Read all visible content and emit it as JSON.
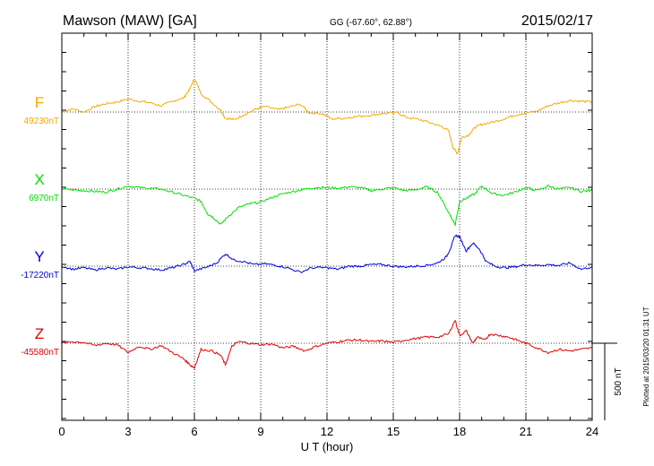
{
  "chart_data": {
    "type": "line",
    "station": "Mawson (MAW)  [GA]",
    "coords": "GG (-67.60°,  62.88°)",
    "date": "2015/02/17",
    "xlabel": "U T (hour)",
    "xlim": [
      0,
      24
    ],
    "xticks": [
      "0",
      "3",
      "6",
      "9",
      "12",
      "15",
      "18",
      "21",
      "24"
    ],
    "grid": true,
    "scale_label": "500 nT",
    "plotted_label": "Plotted at 2015/03/20 01:31  UT",
    "series": [
      {
        "name": "F",
        "baseline_label": "49230nT",
        "color": "#f5a800",
        "points": [
          [
            0,
            0
          ],
          [
            0.5,
            20
          ],
          [
            1,
            0
          ],
          [
            1.5,
            35
          ],
          [
            2,
            55
          ],
          [
            2.5,
            65
          ],
          [
            3,
            85
          ],
          [
            3.5,
            70
          ],
          [
            4,
            60
          ],
          [
            4.5,
            40
          ],
          [
            5,
            70
          ],
          [
            5.5,
            90
          ],
          [
            5.8,
            150
          ],
          [
            6,
            220
          ],
          [
            6.3,
            120
          ],
          [
            6.8,
            60
          ],
          [
            7.2,
            10
          ],
          [
            7.4,
            -40
          ],
          [
            7.8,
            -50
          ],
          [
            8.2,
            -20
          ],
          [
            8.8,
            20
          ],
          [
            9.2,
            35
          ],
          [
            9.8,
            15
          ],
          [
            10.2,
            30
          ],
          [
            10.8,
            50
          ],
          [
            11.2,
            -5
          ],
          [
            11.8,
            -10
          ],
          [
            12.2,
            -45
          ],
          [
            12.8,
            -40
          ],
          [
            13.3,
            -30
          ],
          [
            14,
            -20
          ],
          [
            14.5,
            -10
          ],
          [
            15.2,
            -5
          ],
          [
            15.6,
            -35
          ],
          [
            16.2,
            -50
          ],
          [
            16.8,
            -75
          ],
          [
            17.2,
            -95
          ],
          [
            17.5,
            -120
          ],
          [
            17.7,
            -230
          ],
          [
            17.9,
            -270
          ],
          [
            18.1,
            -165
          ],
          [
            18.4,
            -150
          ],
          [
            18.7,
            -100
          ],
          [
            19,
            -80
          ],
          [
            19.5,
            -65
          ],
          [
            20,
            -45
          ],
          [
            20.5,
            -20
          ],
          [
            21,
            -5
          ],
          [
            21.5,
            5
          ],
          [
            22,
            40
          ],
          [
            22.5,
            60
          ],
          [
            23,
            75
          ],
          [
            23.5,
            70
          ],
          [
            24,
            65
          ]
        ]
      },
      {
        "name": "X",
        "baseline_label": "6970nT",
        "color": "#00e000",
        "points": [
          [
            0,
            0
          ],
          [
            0.5,
            -5
          ],
          [
            1,
            -10
          ],
          [
            1.5,
            -15
          ],
          [
            2,
            -20
          ],
          [
            2.5,
            0
          ],
          [
            3,
            20
          ],
          [
            3.5,
            10
          ],
          [
            4,
            5
          ],
          [
            4.5,
            0
          ],
          [
            5,
            -20
          ],
          [
            5.5,
            -40
          ],
          [
            6,
            -60
          ],
          [
            6.3,
            -80
          ],
          [
            6.6,
            -160
          ],
          [
            6.9,
            -190
          ],
          [
            7.2,
            -230
          ],
          [
            7.5,
            -180
          ],
          [
            8,
            -120
          ],
          [
            8.5,
            -95
          ],
          [
            9,
            -85
          ],
          [
            9.5,
            -55
          ],
          [
            10,
            -30
          ],
          [
            10.5,
            -15
          ],
          [
            11,
            0
          ],
          [
            11.5,
            10
          ],
          [
            12,
            10
          ],
          [
            12.5,
            5
          ],
          [
            13,
            15
          ],
          [
            13.5,
            10
          ],
          [
            14,
            -10
          ],
          [
            14.5,
            0
          ],
          [
            15,
            10
          ],
          [
            15.5,
            -10
          ],
          [
            16,
            -5
          ],
          [
            16.5,
            15
          ],
          [
            17,
            -20
          ],
          [
            17.5,
            -150
          ],
          [
            17.8,
            -230
          ],
          [
            18,
            -80
          ],
          [
            18.3,
            -60
          ],
          [
            18.7,
            -30
          ],
          [
            19,
            20
          ],
          [
            19.5,
            -30
          ],
          [
            20,
            -40
          ],
          [
            20.5,
            -20
          ],
          [
            21,
            10
          ],
          [
            21.5,
            -10
          ],
          [
            22,
            20
          ],
          [
            22.5,
            0
          ],
          [
            23,
            10
          ],
          [
            23.5,
            -15
          ],
          [
            24,
            -10
          ]
        ]
      },
      {
        "name": "Y",
        "baseline_label": "-17220nT",
        "color": "#0000e0",
        "points": [
          [
            0,
            0
          ],
          [
            0.5,
            -20
          ],
          [
            1,
            -10
          ],
          [
            1.5,
            -25
          ],
          [
            2,
            -10
          ],
          [
            2.5,
            -20
          ],
          [
            3,
            -5
          ],
          [
            3.5,
            -10
          ],
          [
            4,
            -15
          ],
          [
            4.5,
            -25
          ],
          [
            5,
            -10
          ],
          [
            5.5,
            10
          ],
          [
            5.8,
            30
          ],
          [
            6,
            -30
          ],
          [
            6.5,
            -10
          ],
          [
            7,
            20
          ],
          [
            7.4,
            80
          ],
          [
            7.8,
            40
          ],
          [
            8.2,
            30
          ],
          [
            8.7,
            10
          ],
          [
            9.2,
            15
          ],
          [
            9.7,
            5
          ],
          [
            10.2,
            -10
          ],
          [
            10.8,
            -40
          ],
          [
            11.3,
            -10
          ],
          [
            12,
            -10
          ],
          [
            12.5,
            -20
          ],
          [
            13,
            0
          ],
          [
            13.5,
            0
          ],
          [
            14,
            10
          ],
          [
            14.5,
            10
          ],
          [
            15,
            0
          ],
          [
            15.5,
            -5
          ],
          [
            16,
            0
          ],
          [
            16.5,
            5
          ],
          [
            17,
            20
          ],
          [
            17.4,
            60
          ],
          [
            17.6,
            120
          ],
          [
            17.8,
            200
          ],
          [
            18,
            190
          ],
          [
            18.3,
            100
          ],
          [
            18.6,
            150
          ],
          [
            18.9,
            110
          ],
          [
            19.2,
            30
          ],
          [
            19.6,
            0
          ],
          [
            20,
            -10
          ],
          [
            20.5,
            -5
          ],
          [
            21,
            10
          ],
          [
            21.5,
            5
          ],
          [
            22,
            10
          ],
          [
            22.5,
            5
          ],
          [
            23,
            20
          ],
          [
            23.5,
            -20
          ],
          [
            24,
            -5
          ]
        ]
      },
      {
        "name": "Z",
        "baseline_label": "-45580nT",
        "color": "#e00000",
        "points": [
          [
            0,
            0
          ],
          [
            0.5,
            10
          ],
          [
            1,
            5
          ],
          [
            1.5,
            -15
          ],
          [
            2,
            0
          ],
          [
            2.5,
            -10
          ],
          [
            3,
            -60
          ],
          [
            3.5,
            -20
          ],
          [
            4,
            -40
          ],
          [
            4.5,
            -15
          ],
          [
            5,
            -60
          ],
          [
            5.5,
            -100
          ],
          [
            5.8,
            -140
          ],
          [
            6,
            -160
          ],
          [
            6.3,
            -40
          ],
          [
            6.8,
            -50
          ],
          [
            7.2,
            -80
          ],
          [
            7.4,
            -140
          ],
          [
            7.7,
            -20
          ],
          [
            8,
            10
          ],
          [
            8.5,
            0
          ],
          [
            9,
            -10
          ],
          [
            9.5,
            -5
          ],
          [
            10,
            -30
          ],
          [
            10.5,
            -20
          ],
          [
            11,
            -50
          ],
          [
            11.5,
            -20
          ],
          [
            12,
            0
          ],
          [
            12.5,
            10
          ],
          [
            13,
            20
          ],
          [
            13.5,
            20
          ],
          [
            14,
            10
          ],
          [
            14.5,
            15
          ],
          [
            15,
            5
          ],
          [
            15.5,
            20
          ],
          [
            16,
            30
          ],
          [
            16.5,
            40
          ],
          [
            17,
            40
          ],
          [
            17.5,
            60
          ],
          [
            17.8,
            150
          ],
          [
            18,
            50
          ],
          [
            18.3,
            80
          ],
          [
            18.6,
            0
          ],
          [
            18.8,
            40
          ],
          [
            19.1,
            20
          ],
          [
            19.4,
            60
          ],
          [
            19.8,
            50
          ],
          [
            20.2,
            40
          ],
          [
            20.6,
            20
          ],
          [
            21,
            0
          ],
          [
            21.5,
            -30
          ],
          [
            22,
            -60
          ],
          [
            22.5,
            -40
          ],
          [
            23,
            -50
          ],
          [
            23.5,
            -40
          ],
          [
            24,
            -30
          ]
        ]
      }
    ]
  }
}
